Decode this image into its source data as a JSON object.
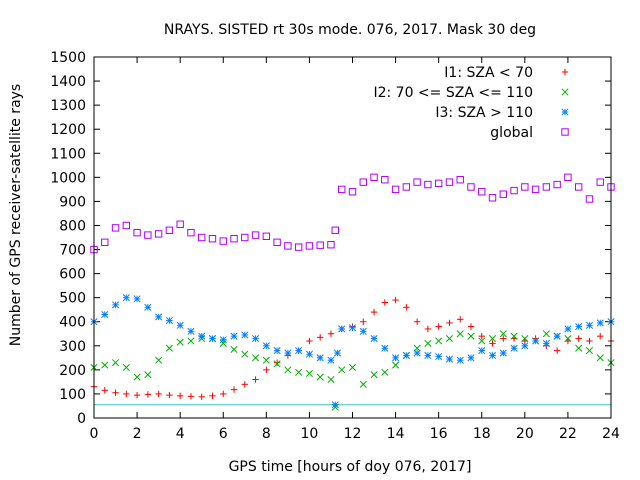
{
  "chart_data": {
    "type": "scatter",
    "title": "NRAYS. SISTED rt 30s mode. 076, 2017. Mask 30 deg",
    "xlabel": "GPS time [hours of doy 076, 2017]",
    "ylabel": "Number of GPS receiver-satellite rays",
    "xlim": [
      0,
      24
    ],
    "ylim": [
      0,
      1500
    ],
    "xticks": [
      0,
      2,
      4,
      6,
      8,
      10,
      12,
      14,
      16,
      18,
      20,
      22,
      24
    ],
    "yticks": [
      0,
      100,
      200,
      300,
      400,
      500,
      600,
      700,
      800,
      900,
      1000,
      1100,
      1200,
      1300,
      1400,
      1500
    ],
    "legend_position": "top-right",
    "reference_line": {
      "y": 55,
      "color": "#40c0c0"
    },
    "series": [
      {
        "name": "I1: SZA < 70",
        "marker": "+",
        "color": "#ff0000",
        "points": [
          [
            0,
            130
          ],
          [
            0.5,
            115
          ],
          [
            1,
            105
          ],
          [
            1.5,
            100
          ],
          [
            2,
            95
          ],
          [
            2.5,
            98
          ],
          [
            3,
            100
          ],
          [
            3.5,
            95
          ],
          [
            4,
            92
          ],
          [
            4.5,
            90
          ],
          [
            5,
            88
          ],
          [
            5.5,
            92
          ],
          [
            6,
            100
          ],
          [
            6.5,
            118
          ],
          [
            7,
            140
          ],
          [
            7.5,
            160
          ],
          [
            8,
            200
          ],
          [
            8.5,
            230
          ],
          [
            9,
            260
          ],
          [
            9.5,
            280
          ],
          [
            10,
            320
          ],
          [
            10.5,
            335
          ],
          [
            11,
            350
          ],
          [
            11.5,
            370
          ],
          [
            12,
            380
          ],
          [
            12.5,
            400
          ],
          [
            13,
            440
          ],
          [
            13.5,
            480
          ],
          [
            14,
            490
          ],
          [
            14.5,
            460
          ],
          [
            15,
            400
          ],
          [
            15.5,
            370
          ],
          [
            16,
            380
          ],
          [
            16.5,
            395
          ],
          [
            17,
            410
          ],
          [
            17.5,
            380
          ],
          [
            18,
            340
          ],
          [
            18.5,
            310
          ],
          [
            19,
            330
          ],
          [
            19.5,
            330
          ],
          [
            20,
            320
          ],
          [
            20.5,
            330
          ],
          [
            21,
            300
          ],
          [
            21.5,
            280
          ],
          [
            22,
            320
          ],
          [
            22.5,
            330
          ],
          [
            23,
            320
          ],
          [
            23.5,
            340
          ],
          [
            24,
            320
          ]
        ]
      },
      {
        "name": "I2: 70 <= SZA <= 110",
        "marker": "x",
        "color": "#00b000",
        "points": [
          [
            0,
            210
          ],
          [
            0.5,
            220
          ],
          [
            1,
            230
          ],
          [
            1.5,
            210
          ],
          [
            2,
            170
          ],
          [
            2.5,
            180
          ],
          [
            3,
            240
          ],
          [
            3.5,
            290
          ],
          [
            4,
            315
          ],
          [
            4.5,
            320
          ],
          [
            5,
            330
          ],
          [
            5.5,
            330
          ],
          [
            6,
            310
          ],
          [
            6.5,
            285
          ],
          [
            7,
            265
          ],
          [
            7.5,
            250
          ],
          [
            8,
            240
          ],
          [
            8.5,
            225
          ],
          [
            9,
            200
          ],
          [
            9.5,
            190
          ],
          [
            10,
            185
          ],
          [
            10.5,
            170
          ],
          [
            11,
            160
          ],
          [
            11.2,
            45
          ],
          [
            11.5,
            200
          ],
          [
            12,
            210
          ],
          [
            12.5,
            140
          ],
          [
            13,
            180
          ],
          [
            13.5,
            190
          ],
          [
            14,
            220
          ],
          [
            14.5,
            260
          ],
          [
            15,
            290
          ],
          [
            15.5,
            310
          ],
          [
            16,
            320
          ],
          [
            16.5,
            330
          ],
          [
            17,
            350
          ],
          [
            17.5,
            340
          ],
          [
            18,
            320
          ],
          [
            18.5,
            330
          ],
          [
            19,
            350
          ],
          [
            19.5,
            340
          ],
          [
            20,
            330
          ],
          [
            20.5,
            320
          ],
          [
            21,
            350
          ],
          [
            21.5,
            340
          ],
          [
            22,
            330
          ],
          [
            22.5,
            290
          ],
          [
            23,
            280
          ],
          [
            23.5,
            250
          ],
          [
            24,
            230
          ]
        ]
      },
      {
        "name": "I3: SZA > 110",
        "marker": "*",
        "color": "#0080ff",
        "points": [
          [
            0,
            400
          ],
          [
            0.5,
            430
          ],
          [
            1,
            470
          ],
          [
            1.5,
            500
          ],
          [
            2,
            495
          ],
          [
            2.5,
            460
          ],
          [
            3,
            420
          ],
          [
            3.5,
            405
          ],
          [
            4,
            385
          ],
          [
            4.5,
            360
          ],
          [
            5,
            340
          ],
          [
            5.5,
            330
          ],
          [
            6,
            325
          ],
          [
            6.5,
            340
          ],
          [
            7,
            345
          ],
          [
            7.5,
            330
          ],
          [
            8,
            300
          ],
          [
            8.5,
            280
          ],
          [
            9,
            270
          ],
          [
            9.5,
            280
          ],
          [
            10,
            265
          ],
          [
            10.5,
            250
          ],
          [
            11,
            240
          ],
          [
            11.2,
            55
          ],
          [
            11.3,
            270
          ],
          [
            11.5,
            370
          ],
          [
            12,
            375
          ],
          [
            12.5,
            360
          ],
          [
            13,
            330
          ],
          [
            13.5,
            290
          ],
          [
            14,
            250
          ],
          [
            14.5,
            260
          ],
          [
            15,
            270
          ],
          [
            15.5,
            260
          ],
          [
            16,
            255
          ],
          [
            16.5,
            245
          ],
          [
            17,
            240
          ],
          [
            17.5,
            250
          ],
          [
            18,
            280
          ],
          [
            18.5,
            260
          ],
          [
            19,
            270
          ],
          [
            19.5,
            290
          ],
          [
            20,
            300
          ],
          [
            20.5,
            320
          ],
          [
            21,
            310
          ],
          [
            21.5,
            340
          ],
          [
            22,
            370
          ],
          [
            22.5,
            380
          ],
          [
            23,
            385
          ],
          [
            23.5,
            395
          ],
          [
            24,
            400
          ]
        ]
      },
      {
        "name": "global",
        "marker": "square",
        "color": "#b000ff",
        "points": [
          [
            0,
            700
          ],
          [
            0.5,
            730
          ],
          [
            1,
            790
          ],
          [
            1.5,
            800
          ],
          [
            2,
            770
          ],
          [
            2.5,
            760
          ],
          [
            3,
            765
          ],
          [
            3.5,
            780
          ],
          [
            4,
            805
          ],
          [
            4.5,
            770
          ],
          [
            5,
            750
          ],
          [
            5.5,
            745
          ],
          [
            6,
            735
          ],
          [
            6.5,
            745
          ],
          [
            7,
            750
          ],
          [
            7.5,
            760
          ],
          [
            8,
            755
          ],
          [
            8.5,
            730
          ],
          [
            9,
            715
          ],
          [
            9.5,
            710
          ],
          [
            10,
            715
          ],
          [
            10.5,
            718
          ],
          [
            11,
            720
          ],
          [
            11.2,
            780
          ],
          [
            11.5,
            950
          ],
          [
            12,
            940
          ],
          [
            12.5,
            980
          ],
          [
            13,
            1000
          ],
          [
            13.5,
            990
          ],
          [
            14,
            950
          ],
          [
            14.5,
            960
          ],
          [
            15,
            980
          ],
          [
            15.5,
            970
          ],
          [
            16,
            975
          ],
          [
            16.5,
            980
          ],
          [
            17,
            990
          ],
          [
            17.5,
            960
          ],
          [
            18,
            940
          ],
          [
            18.5,
            915
          ],
          [
            19,
            930
          ],
          [
            19.5,
            945
          ],
          [
            20,
            960
          ],
          [
            20.5,
            950
          ],
          [
            21,
            960
          ],
          [
            21.5,
            970
          ],
          [
            22,
            1000
          ],
          [
            22.5,
            960
          ],
          [
            23,
            910
          ],
          [
            23.5,
            980
          ],
          [
            24,
            960
          ]
        ]
      }
    ]
  }
}
